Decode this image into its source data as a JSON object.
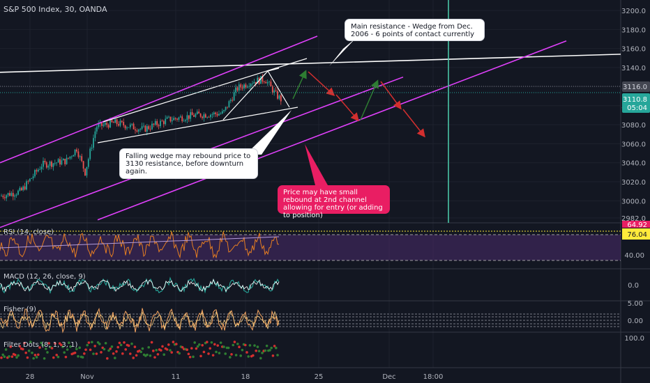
{
  "chart_data": {
    "type": "candlestick",
    "title": "S&P 500 Index, 30, OANDA",
    "price_axis": {
      "ticks": [
        "3200.0",
        "3180.0",
        "3160.0",
        "3140.0",
        "3120.0",
        "3100.0",
        "3080.0",
        "3060.0",
        "3040.0",
        "3020.0",
        "3000.0",
        "2982.0"
      ],
      "range": [
        2978,
        3206
      ],
      "last_price_label": "3116.0",
      "current_price_label": "3110.8",
      "countdown_label": "05:04"
    },
    "time_axis": {
      "ticks": [
        "28",
        "Nov",
        "11",
        "18",
        "25",
        "Dec",
        "18:00"
      ]
    },
    "trendlines": [
      {
        "name": "main-resistance",
        "color": "#ffffff",
        "from": [
          "Oct 22",
          3135
        ],
        "to": [
          "Dec 5",
          3154
        ]
      },
      {
        "name": "upper-channel",
        "color": "#e040fb",
        "from": [
          "Oct 22",
          3040
        ],
        "to": [
          "Nov 23",
          3173
        ]
      },
      {
        "name": "middle-channel",
        "color": "#e040fb",
        "from": [
          "Oct 22",
          2972
        ],
        "to": [
          "Nov 29",
          3130
        ]
      },
      {
        "name": "lower-channel",
        "color": "#e040fb",
        "from": [
          "Nov 2",
          2980
        ],
        "to": [
          "Dec 11",
          3168
        ]
      }
    ],
    "annotations": [
      {
        "text": "Main resistance - Wedge from Dec. 2006 - 6 points of contact currently"
      },
      {
        "text": "Falling wedge may rebound price to 3130 resistance, before downturn again."
      },
      {
        "text": "Price may have small rebound at 2nd channel allowing for entry (or adding to position)"
      }
    ],
    "indicators": [
      {
        "name": "RSI (14, close)",
        "axis_labels": [
          "64.92",
          "40.00"
        ],
        "current": "76.04"
      },
      {
        "name": "MACD (12, 26, close, 9)",
        "axis_labels": [
          "0.0"
        ]
      },
      {
        "name": "Fisher (9)",
        "axis_labels": [
          "5.00",
          "0.00"
        ]
      },
      {
        "name": "Filter Dots (8, 1, 3, 1)",
        "axis_labels": [
          "100.0"
        ]
      }
    ],
    "colors": {
      "background": "#131722",
      "up": "#26a69a",
      "down": "#ef5350",
      "channel": "#e040fb",
      "resistance": "#ffffff",
      "arrow_up": "#2e7d32",
      "arrow_down": "#d32f2f",
      "price_label": "#26a69a",
      "rsi_line": "#e67e22",
      "rsi_fill": "#4a2b6b",
      "rsi_level": "#ffeb3b"
    }
  }
}
